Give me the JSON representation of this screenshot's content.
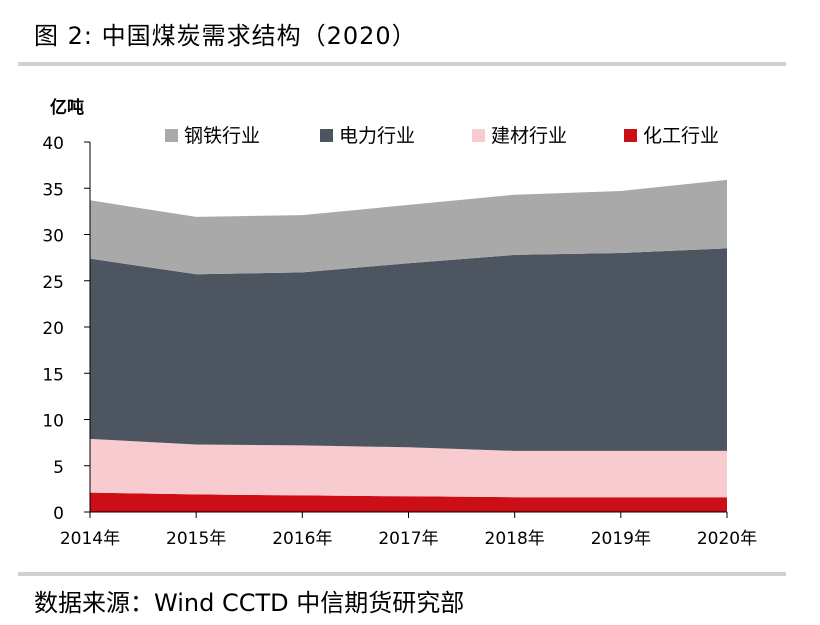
{
  "figure": {
    "title": "图 2:   中国煤炭需求结构（2020）",
    "source": "数据来源：Wind CCTD 中信期货研究部"
  },
  "chart_data": {
    "type": "area",
    "stacked": true,
    "unit_label": "亿吨",
    "x": [
      "2014年",
      "2015年",
      "2016年",
      "2017年",
      "2018年",
      "2019年",
      "2020年"
    ],
    "ylim": [
      0,
      40
    ],
    "yticks": [
      0,
      5,
      10,
      15,
      20,
      25,
      30,
      35,
      40
    ],
    "grid": false,
    "legend_position": "top",
    "series": [
      {
        "name": "化工行业",
        "color": "#cc0e16",
        "values": [
          2.1,
          1.9,
          1.8,
          1.7,
          1.6,
          1.6,
          1.6
        ]
      },
      {
        "name": "建材行业",
        "color": "#f7cbcf",
        "values": [
          5.8,
          5.4,
          5.4,
          5.3,
          5.0,
          5.0,
          5.0
        ]
      },
      {
        "name": "电力行业",
        "color": "#4d5560",
        "values": [
          19.5,
          18.4,
          18.7,
          19.9,
          21.2,
          21.4,
          21.9
        ]
      },
      {
        "name": "钢铁行业",
        "color": "#a9a9a9",
        "values": [
          6.3,
          6.2,
          6.2,
          6.3,
          6.5,
          6.7,
          7.4
        ]
      }
    ],
    "legend_order": [
      "钢铁行业",
      "电力行业",
      "建材行业",
      "化工行业"
    ]
  }
}
